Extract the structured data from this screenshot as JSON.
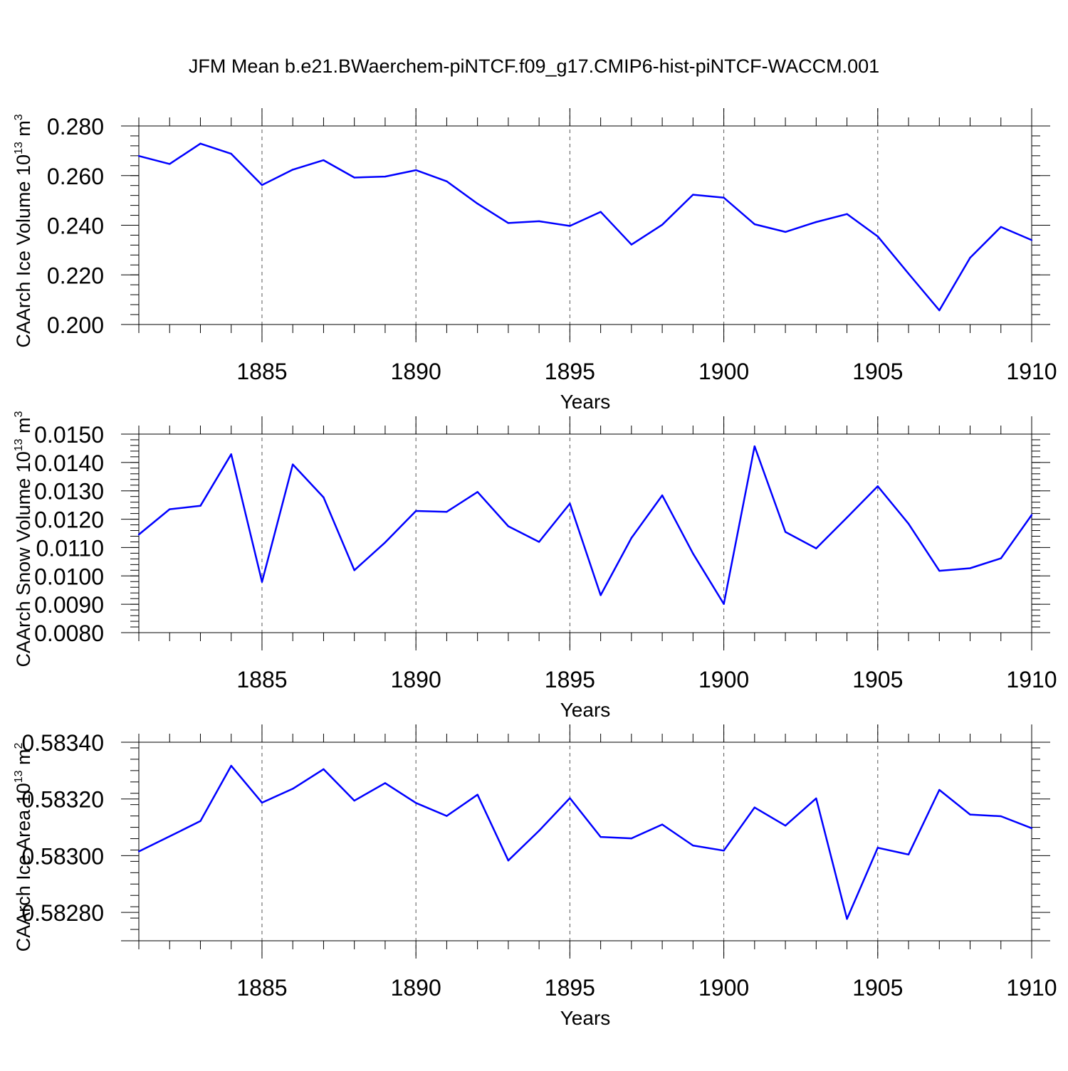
{
  "title": "JFM Mean b.e21.BWaerchem-piNTCF.f09_g17.CMIP6-hist-piNTCF-WACCM.001",
  "series_color": "#0000ff",
  "chart_data": [
    {
      "type": "line",
      "ylabel": "CAArch Ice Volume 10",
      "ylabel_sup": "13",
      "ylabel_unit": "m",
      "ylabel_unit_sup": "3",
      "xlabel": "Years",
      "xlim": [
        1881,
        1910
      ],
      "ylim": [
        0.2,
        0.28
      ],
      "yticks": [
        0.2,
        0.22,
        0.24,
        0.26,
        0.28
      ],
      "ytick_labels": [
        "0.200",
        "0.220",
        "0.240",
        "0.260",
        "0.280"
      ],
      "xticks": [
        1885,
        1890,
        1895,
        1900,
        1905,
        1910
      ],
      "xtick_labels": [
        "1885",
        "1890",
        "1895",
        "1900",
        "1905",
        "1910"
      ],
      "x": [
        1881,
        1882,
        1883,
        1884,
        1885,
        1886,
        1887,
        1888,
        1889,
        1890,
        1891,
        1892,
        1893,
        1894,
        1895,
        1896,
        1897,
        1898,
        1899,
        1900,
        1901,
        1902,
        1903,
        1904,
        1905,
        1906,
        1907,
        1908,
        1909,
        1910
      ],
      "values": [
        0.2679,
        0.2647,
        0.2729,
        0.2688,
        0.2562,
        0.2624,
        0.2662,
        0.2592,
        0.2596,
        0.2622,
        0.2577,
        0.2487,
        0.2409,
        0.2416,
        0.2397,
        0.2454,
        0.2322,
        0.2402,
        0.2523,
        0.2511,
        0.2404,
        0.2373,
        0.2413,
        0.2445,
        0.2355,
        0.2205,
        0.2057,
        0.2269,
        0.2393,
        0.234
      ]
    },
    {
      "type": "line",
      "ylabel": "CAArch Snow Volume 10",
      "ylabel_sup": "13",
      "ylabel_unit": "m",
      "ylabel_unit_sup": "3",
      "xlabel": "Years",
      "xlim": [
        1881,
        1910
      ],
      "ylim": [
        0.008,
        0.015
      ],
      "yticks": [
        0.008,
        0.009,
        0.01,
        0.011,
        0.012,
        0.013,
        0.014,
        0.015
      ],
      "ytick_labels": [
        "0.0080",
        "0.0090",
        "0.0100",
        "0.0110",
        "0.0120",
        "0.0130",
        "0.0140",
        "0.0150"
      ],
      "xticks": [
        1885,
        1890,
        1895,
        1900,
        1905,
        1910
      ],
      "xtick_labels": [
        "1885",
        "1890",
        "1895",
        "1900",
        "1905",
        "1910"
      ],
      "x": [
        1881,
        1882,
        1883,
        1884,
        1885,
        1886,
        1887,
        1888,
        1889,
        1890,
        1891,
        1892,
        1893,
        1894,
        1895,
        1896,
        1897,
        1898,
        1899,
        1900,
        1901,
        1902,
        1903,
        1904,
        1905,
        1906,
        1907,
        1908,
        1909,
        1910
      ],
      "values": [
        0.01146,
        0.01235,
        0.01247,
        0.01429,
        0.00979,
        0.01393,
        0.01277,
        0.0102,
        0.01118,
        0.01229,
        0.01226,
        0.01296,
        0.01175,
        0.0112,
        0.01255,
        0.00932,
        0.01134,
        0.01284,
        0.01079,
        0.00901,
        0.01457,
        0.01155,
        0.01097,
        0.01206,
        0.01316,
        0.01184,
        0.01018,
        0.01027,
        0.01062,
        0.01215
      ]
    },
    {
      "type": "line",
      "ylabel": "CAArch Ice Area 10",
      "ylabel_sup": "13",
      "ylabel_unit": "m",
      "ylabel_unit_sup": "2",
      "xlabel": "Years",
      "xlim": [
        1881,
        1910
      ],
      "ylim": [
        0.5827,
        0.5834
      ],
      "yticks": [
        0.5828,
        0.583,
        0.5832,
        0.5834
      ],
      "ytick_labels": [
        "0.58280",
        "0.58300",
        "0.58320",
        "0.58340"
      ],
      "xticks": [
        1885,
        1890,
        1895,
        1900,
        1905,
        1910
      ],
      "xtick_labels": [
        "1885",
        "1890",
        "1895",
        "1900",
        "1905",
        "1910"
      ],
      "x": [
        1881,
        1882,
        1883,
        1884,
        1885,
        1886,
        1887,
        1888,
        1889,
        1890,
        1891,
        1892,
        1893,
        1894,
        1895,
        1896,
        1897,
        1898,
        1899,
        1900,
        1901,
        1902,
        1903,
        1904,
        1905,
        1906,
        1907,
        1908,
        1909,
        1910
      ],
      "values": [
        0.583015,
        0.583068,
        0.583122,
        0.583317,
        0.583187,
        0.583236,
        0.583305,
        0.583194,
        0.583256,
        0.583186,
        0.58314,
        0.583215,
        0.582983,
        0.583088,
        0.583203,
        0.583066,
        0.583061,
        0.58311,
        0.583036,
        0.583018,
        0.58317,
        0.583106,
        0.583202,
        0.582777,
        0.583028,
        0.583004,
        0.583232,
        0.583145,
        0.583139,
        0.583097
      ]
    }
  ]
}
